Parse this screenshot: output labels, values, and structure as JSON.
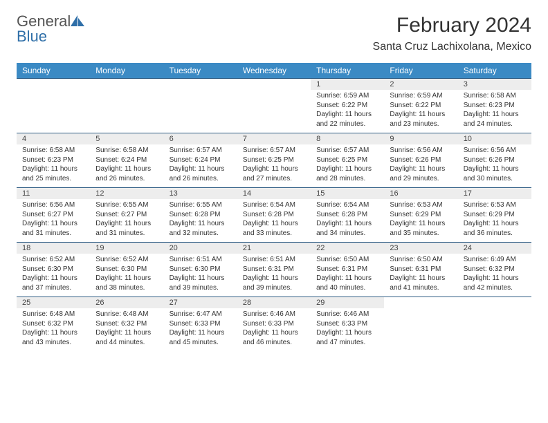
{
  "logo": {
    "general": "General",
    "blue": "Blue"
  },
  "title": "February 2024",
  "location": "Santa Cruz Lachixolana, Mexico",
  "colors": {
    "header_bg": "#3b8ac4",
    "header_text": "#ffffff",
    "daynum_bg": "#ededed",
    "rule": "#2b5a82",
    "logo_blue": "#2f6fa8"
  },
  "weekdays": [
    "Sunday",
    "Monday",
    "Tuesday",
    "Wednesday",
    "Thursday",
    "Friday",
    "Saturday"
  ],
  "weeks": [
    [
      null,
      null,
      null,
      null,
      {
        "d": "1",
        "sr": "6:59 AM",
        "ss": "6:22 PM",
        "dl": "11 hours and 22 minutes."
      },
      {
        "d": "2",
        "sr": "6:59 AM",
        "ss": "6:22 PM",
        "dl": "11 hours and 23 minutes."
      },
      {
        "d": "3",
        "sr": "6:58 AM",
        "ss": "6:23 PM",
        "dl": "11 hours and 24 minutes."
      }
    ],
    [
      {
        "d": "4",
        "sr": "6:58 AM",
        "ss": "6:23 PM",
        "dl": "11 hours and 25 minutes."
      },
      {
        "d": "5",
        "sr": "6:58 AM",
        "ss": "6:24 PM",
        "dl": "11 hours and 26 minutes."
      },
      {
        "d": "6",
        "sr": "6:57 AM",
        "ss": "6:24 PM",
        "dl": "11 hours and 26 minutes."
      },
      {
        "d": "7",
        "sr": "6:57 AM",
        "ss": "6:25 PM",
        "dl": "11 hours and 27 minutes."
      },
      {
        "d": "8",
        "sr": "6:57 AM",
        "ss": "6:25 PM",
        "dl": "11 hours and 28 minutes."
      },
      {
        "d": "9",
        "sr": "6:56 AM",
        "ss": "6:26 PM",
        "dl": "11 hours and 29 minutes."
      },
      {
        "d": "10",
        "sr": "6:56 AM",
        "ss": "6:26 PM",
        "dl": "11 hours and 30 minutes."
      }
    ],
    [
      {
        "d": "11",
        "sr": "6:56 AM",
        "ss": "6:27 PM",
        "dl": "11 hours and 31 minutes."
      },
      {
        "d": "12",
        "sr": "6:55 AM",
        "ss": "6:27 PM",
        "dl": "11 hours and 31 minutes."
      },
      {
        "d": "13",
        "sr": "6:55 AM",
        "ss": "6:28 PM",
        "dl": "11 hours and 32 minutes."
      },
      {
        "d": "14",
        "sr": "6:54 AM",
        "ss": "6:28 PM",
        "dl": "11 hours and 33 minutes."
      },
      {
        "d": "15",
        "sr": "6:54 AM",
        "ss": "6:28 PM",
        "dl": "11 hours and 34 minutes."
      },
      {
        "d": "16",
        "sr": "6:53 AM",
        "ss": "6:29 PM",
        "dl": "11 hours and 35 minutes."
      },
      {
        "d": "17",
        "sr": "6:53 AM",
        "ss": "6:29 PM",
        "dl": "11 hours and 36 minutes."
      }
    ],
    [
      {
        "d": "18",
        "sr": "6:52 AM",
        "ss": "6:30 PM",
        "dl": "11 hours and 37 minutes."
      },
      {
        "d": "19",
        "sr": "6:52 AM",
        "ss": "6:30 PM",
        "dl": "11 hours and 38 minutes."
      },
      {
        "d": "20",
        "sr": "6:51 AM",
        "ss": "6:30 PM",
        "dl": "11 hours and 39 minutes."
      },
      {
        "d": "21",
        "sr": "6:51 AM",
        "ss": "6:31 PM",
        "dl": "11 hours and 39 minutes."
      },
      {
        "d": "22",
        "sr": "6:50 AM",
        "ss": "6:31 PM",
        "dl": "11 hours and 40 minutes."
      },
      {
        "d": "23",
        "sr": "6:50 AM",
        "ss": "6:31 PM",
        "dl": "11 hours and 41 minutes."
      },
      {
        "d": "24",
        "sr": "6:49 AM",
        "ss": "6:32 PM",
        "dl": "11 hours and 42 minutes."
      }
    ],
    [
      {
        "d": "25",
        "sr": "6:48 AM",
        "ss": "6:32 PM",
        "dl": "11 hours and 43 minutes."
      },
      {
        "d": "26",
        "sr": "6:48 AM",
        "ss": "6:32 PM",
        "dl": "11 hours and 44 minutes."
      },
      {
        "d": "27",
        "sr": "6:47 AM",
        "ss": "6:33 PM",
        "dl": "11 hours and 45 minutes."
      },
      {
        "d": "28",
        "sr": "6:46 AM",
        "ss": "6:33 PM",
        "dl": "11 hours and 46 minutes."
      },
      {
        "d": "29",
        "sr": "6:46 AM",
        "ss": "6:33 PM",
        "dl": "11 hours and 47 minutes."
      },
      null,
      null
    ]
  ],
  "labels": {
    "sunrise": "Sunrise: ",
    "sunset": "Sunset: ",
    "daylight": "Daylight: "
  }
}
